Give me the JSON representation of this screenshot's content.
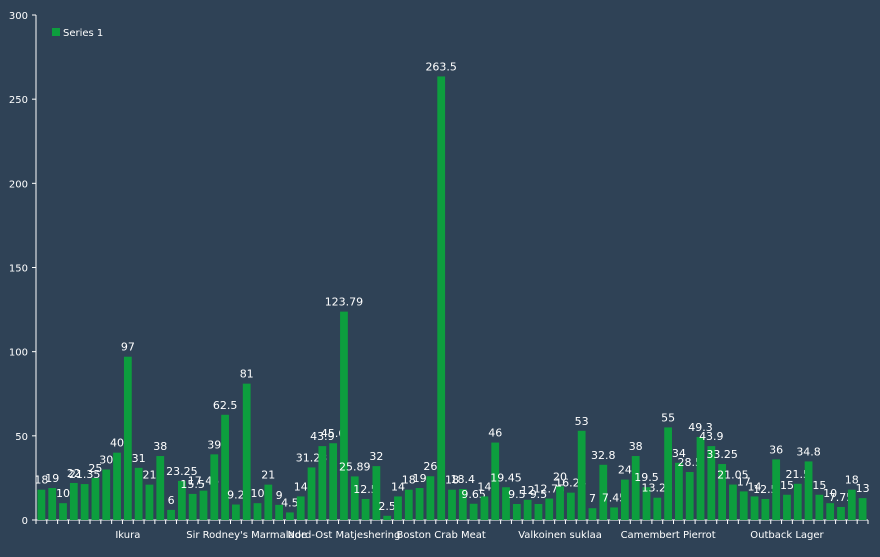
{
  "chart_data": {
    "type": "bar",
    "background": "#2f4256",
    "bar_color": "#0d9e3e",
    "text_color": "#ffffff",
    "grid": false,
    "legend_position": "top-left",
    "ylim": [
      0,
      300
    ],
    "yticks": [
      0,
      50,
      100,
      150,
      200,
      250,
      300
    ],
    "series": [
      {
        "name": "Series 1",
        "values": [
          18,
          19,
          10,
          22,
          21.35,
          25,
          30,
          40,
          97,
          31,
          21,
          38,
          6,
          23.25,
          15.5,
          17.45,
          39,
          62.5,
          9.2,
          81,
          10,
          21,
          9,
          4.5,
          14,
          31.23,
          43.9,
          45.6,
          123.79,
          25.89,
          12.5,
          32,
          2.5,
          14,
          18,
          19,
          26,
          263.5,
          18,
          18.4,
          9.65,
          14,
          46,
          19.45,
          9.5,
          12,
          9.5,
          12.75,
          20,
          16.25,
          53,
          7,
          32.8,
          7.45,
          24,
          38,
          19.5,
          13.25,
          55,
          34,
          28.5,
          49.3,
          43.9,
          33.25,
          21.05,
          17,
          14,
          12.5,
          36,
          15,
          21.5,
          34.8,
          15,
          10,
          7.75,
          18,
          13
        ]
      }
    ],
    "category_labels": [
      {
        "index": 8,
        "text": "Ikura"
      },
      {
        "index": 19,
        "text": "Sir Rodney's Marmalade"
      },
      {
        "index": 28,
        "text": "Nord-Ost Matjeshering"
      },
      {
        "index": 37,
        "text": "Boston Crab Meat"
      },
      {
        "index": 48,
        "text": "Valkoinen suklaa"
      },
      {
        "index": 58,
        "text": "Camembert Pierrot"
      },
      {
        "index": 69,
        "text": "Outback Lager"
      }
    ]
  }
}
